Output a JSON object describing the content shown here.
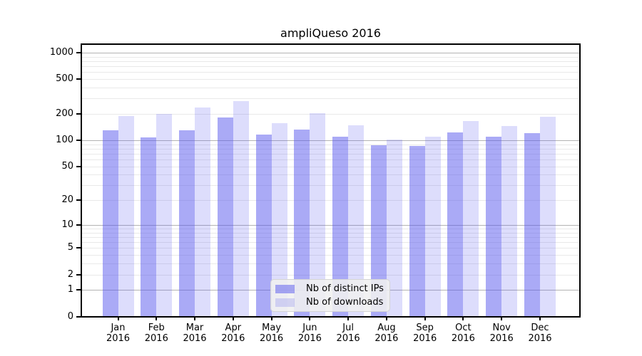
{
  "figure": {
    "background": "#ffffff",
    "axis_color": "#000000",
    "major_grid_color": "#b3b3b3",
    "minor_grid_color": "#e9e9e9"
  },
  "chart_data": {
    "type": "bar",
    "title": "ampliQueso 2016",
    "categories": [
      "Jan",
      "Feb",
      "Mar",
      "Apr",
      "May",
      "Jun",
      "Jul",
      "Aug",
      "Sep",
      "Oct",
      "Nov",
      "Dec"
    ],
    "category_year": "2016",
    "series": [
      {
        "name": "Nb of distinct IPs",
        "color": "rgba(85,85,238,0.5)",
        "values": [
          130,
          108,
          130,
          183,
          116,
          133,
          109,
          88,
          86,
          124,
          110,
          120
        ]
      },
      {
        "name": "Nb of downloads",
        "color": "rgba(85,85,238,0.2)",
        "values": [
          190,
          200,
          236,
          278,
          156,
          204,
          147,
          101,
          110,
          167,
          146,
          184
        ]
      }
    ],
    "yscale": "symlog",
    "ylim": [
      0,
      1000
    ],
    "y_tick_labels": [
      0,
      1,
      2,
      5,
      10,
      20,
      50,
      100,
      200,
      500,
      1000
    ],
    "grid": true,
    "legend_position": "inside-bottom-center"
  }
}
